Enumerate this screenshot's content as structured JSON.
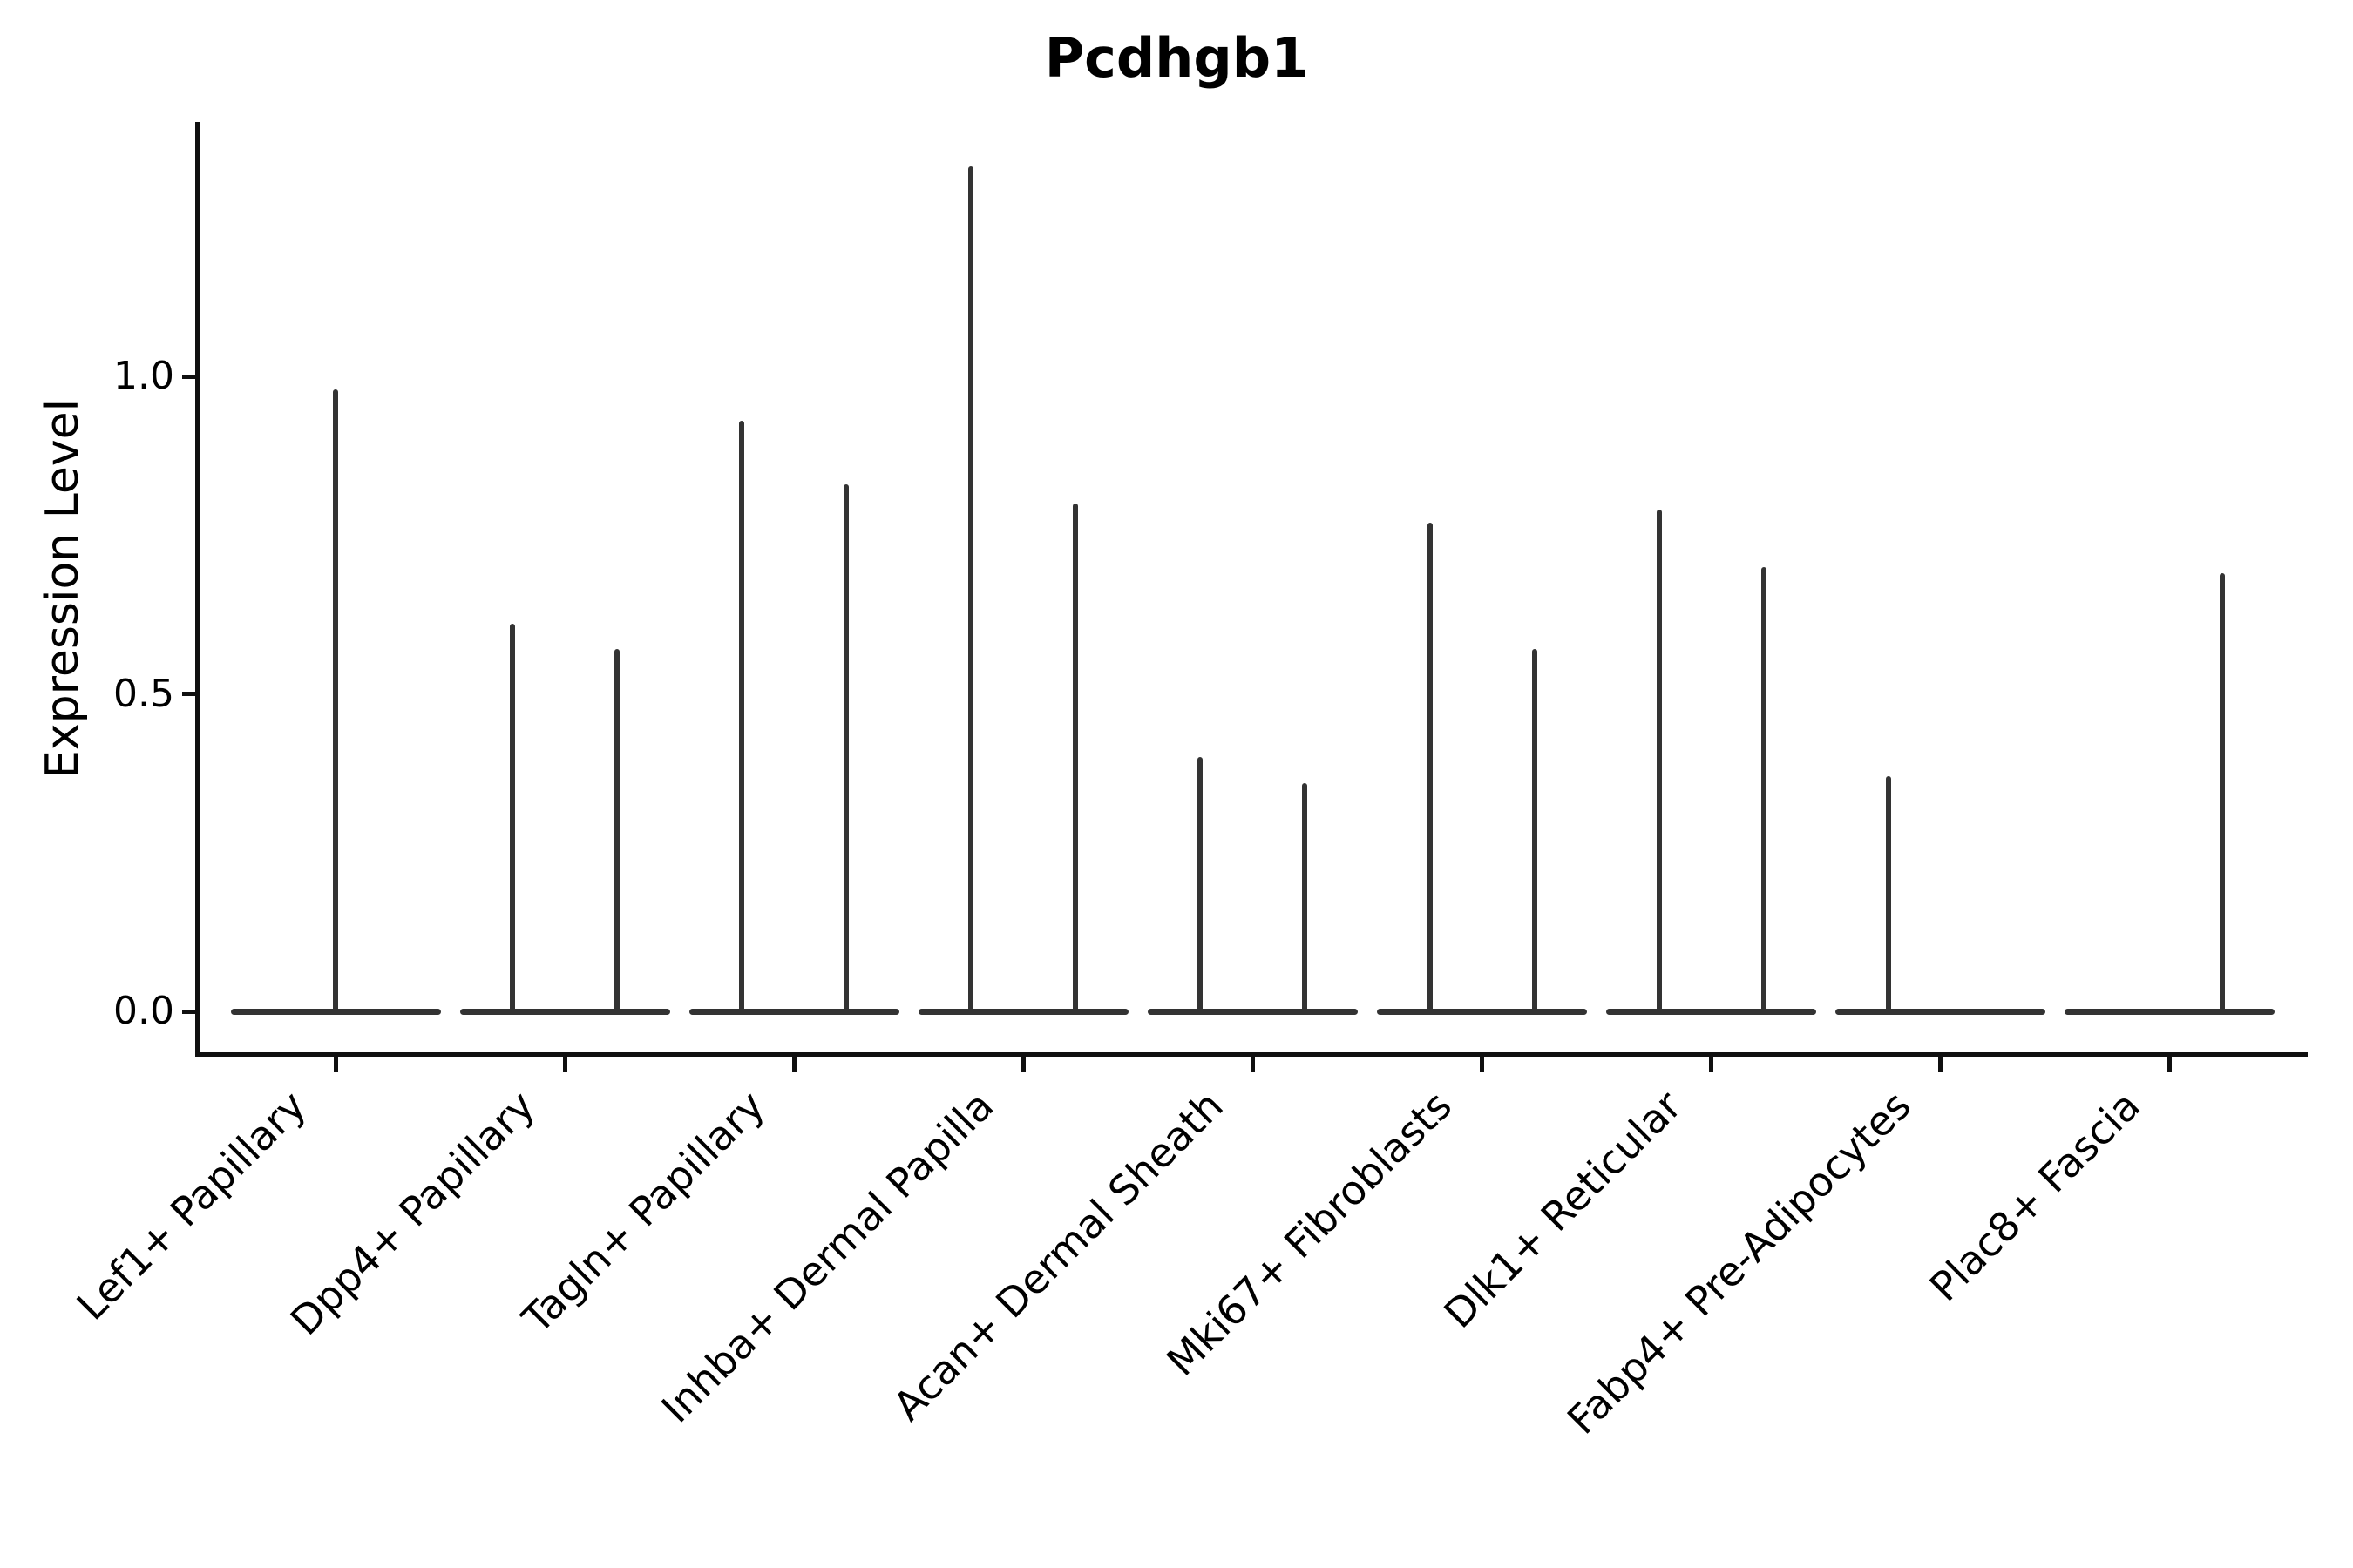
{
  "title": "Pcdhgb1",
  "colors": {
    "background": "#ffffff",
    "violin": "#333333",
    "axis": "#101010",
    "text": "#000000"
  },
  "chart_data": {
    "type": "violin",
    "title": "Pcdhgb1",
    "xlabel": "",
    "ylabel": "Expression Level",
    "ylim": [
      -0.07,
      1.4
    ],
    "yticks": [
      0.0,
      0.5,
      1.0
    ],
    "ytick_labels": [
      "0.0",
      "0.5",
      "1.0"
    ],
    "grid": false,
    "legend_position": "none",
    "note": "Sparse single-cell expression violins: each violin collapses to a wide flat base at 0 with a thin vertical spike reaching the maximum expression value. Most categories contain two side-by-side violins (two dodged groups); Lef1+ Papillary has a single full-width centered violin; one group of Fabp4+ Pre-Adipocytes and of Plac8+ Fascia has zero expression (base only, no spike).",
    "categories": [
      {
        "label": "Lef1+ Papillary",
        "violins": [
          {
            "pos": "center",
            "max": 0.98
          }
        ]
      },
      {
        "label": "Dpp4+ Papillary",
        "violins": [
          {
            "pos": "left",
            "max": 0.61
          },
          {
            "pos": "right",
            "max": 0.57
          }
        ]
      },
      {
        "label": "Tagln+ Papillary",
        "violins": [
          {
            "pos": "left",
            "max": 0.93
          },
          {
            "pos": "right",
            "max": 0.83
          }
        ]
      },
      {
        "label": "Inhba+ Dermal Papilla",
        "violins": [
          {
            "pos": "left",
            "max": 1.33
          },
          {
            "pos": "right",
            "max": 0.8
          }
        ]
      },
      {
        "label": "Acan+ Dermal Sheath",
        "violins": [
          {
            "pos": "left",
            "max": 0.4
          },
          {
            "pos": "right",
            "max": 0.36
          }
        ]
      },
      {
        "label": "Mki67+ Fibroblasts",
        "violins": [
          {
            "pos": "left",
            "max": 0.77
          },
          {
            "pos": "right",
            "max": 0.57
          }
        ]
      },
      {
        "label": "Dlk1+ Reticular",
        "violins": [
          {
            "pos": "left",
            "max": 0.79
          },
          {
            "pos": "right",
            "max": 0.7
          }
        ]
      },
      {
        "label": "Fabp4+ Pre-Adipocytes",
        "violins": [
          {
            "pos": "left",
            "max": 0.37
          },
          {
            "pos": "right",
            "max": 0.0
          }
        ]
      },
      {
        "label": "Plac8+ Fascia",
        "violins": [
          {
            "pos": "left",
            "max": 0.0
          },
          {
            "pos": "right",
            "max": 0.69
          }
        ]
      }
    ]
  }
}
